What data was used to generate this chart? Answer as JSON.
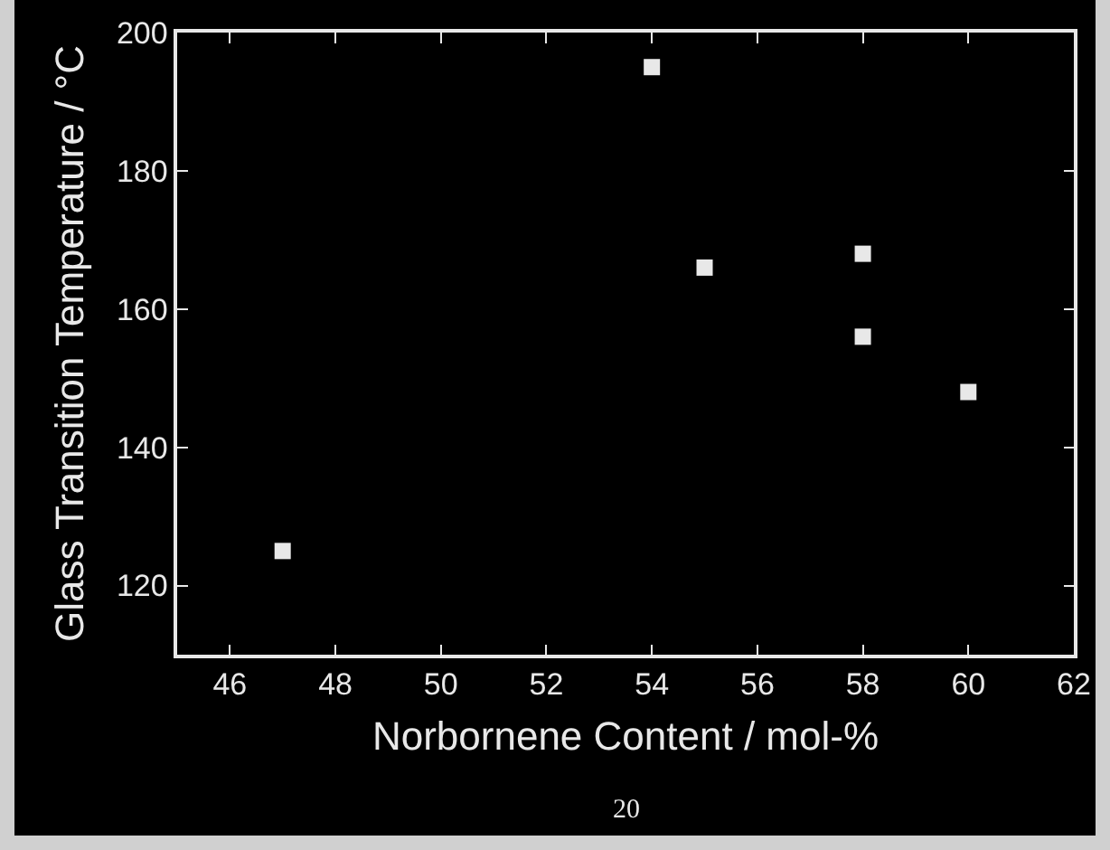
{
  "chart_data": {
    "type": "scatter",
    "xlabel": "Norbornene Content / mol-%",
    "ylabel": "Glass Transition Temperature / °C",
    "x": [
      47,
      54,
      55,
      58,
      58,
      60
    ],
    "values": [
      125,
      195,
      166,
      168,
      156,
      148
    ],
    "color": "#e8e8e8",
    "marker": "square",
    "xlim": [
      45,
      62
    ],
    "xticks": [
      46,
      48,
      50,
      52,
      54,
      56,
      58,
      60,
      62
    ],
    "ylim": [
      110,
      200
    ],
    "yticks": [
      120,
      140,
      160,
      180,
      200
    ],
    "grid": false,
    "annotations": [
      "20"
    ]
  }
}
